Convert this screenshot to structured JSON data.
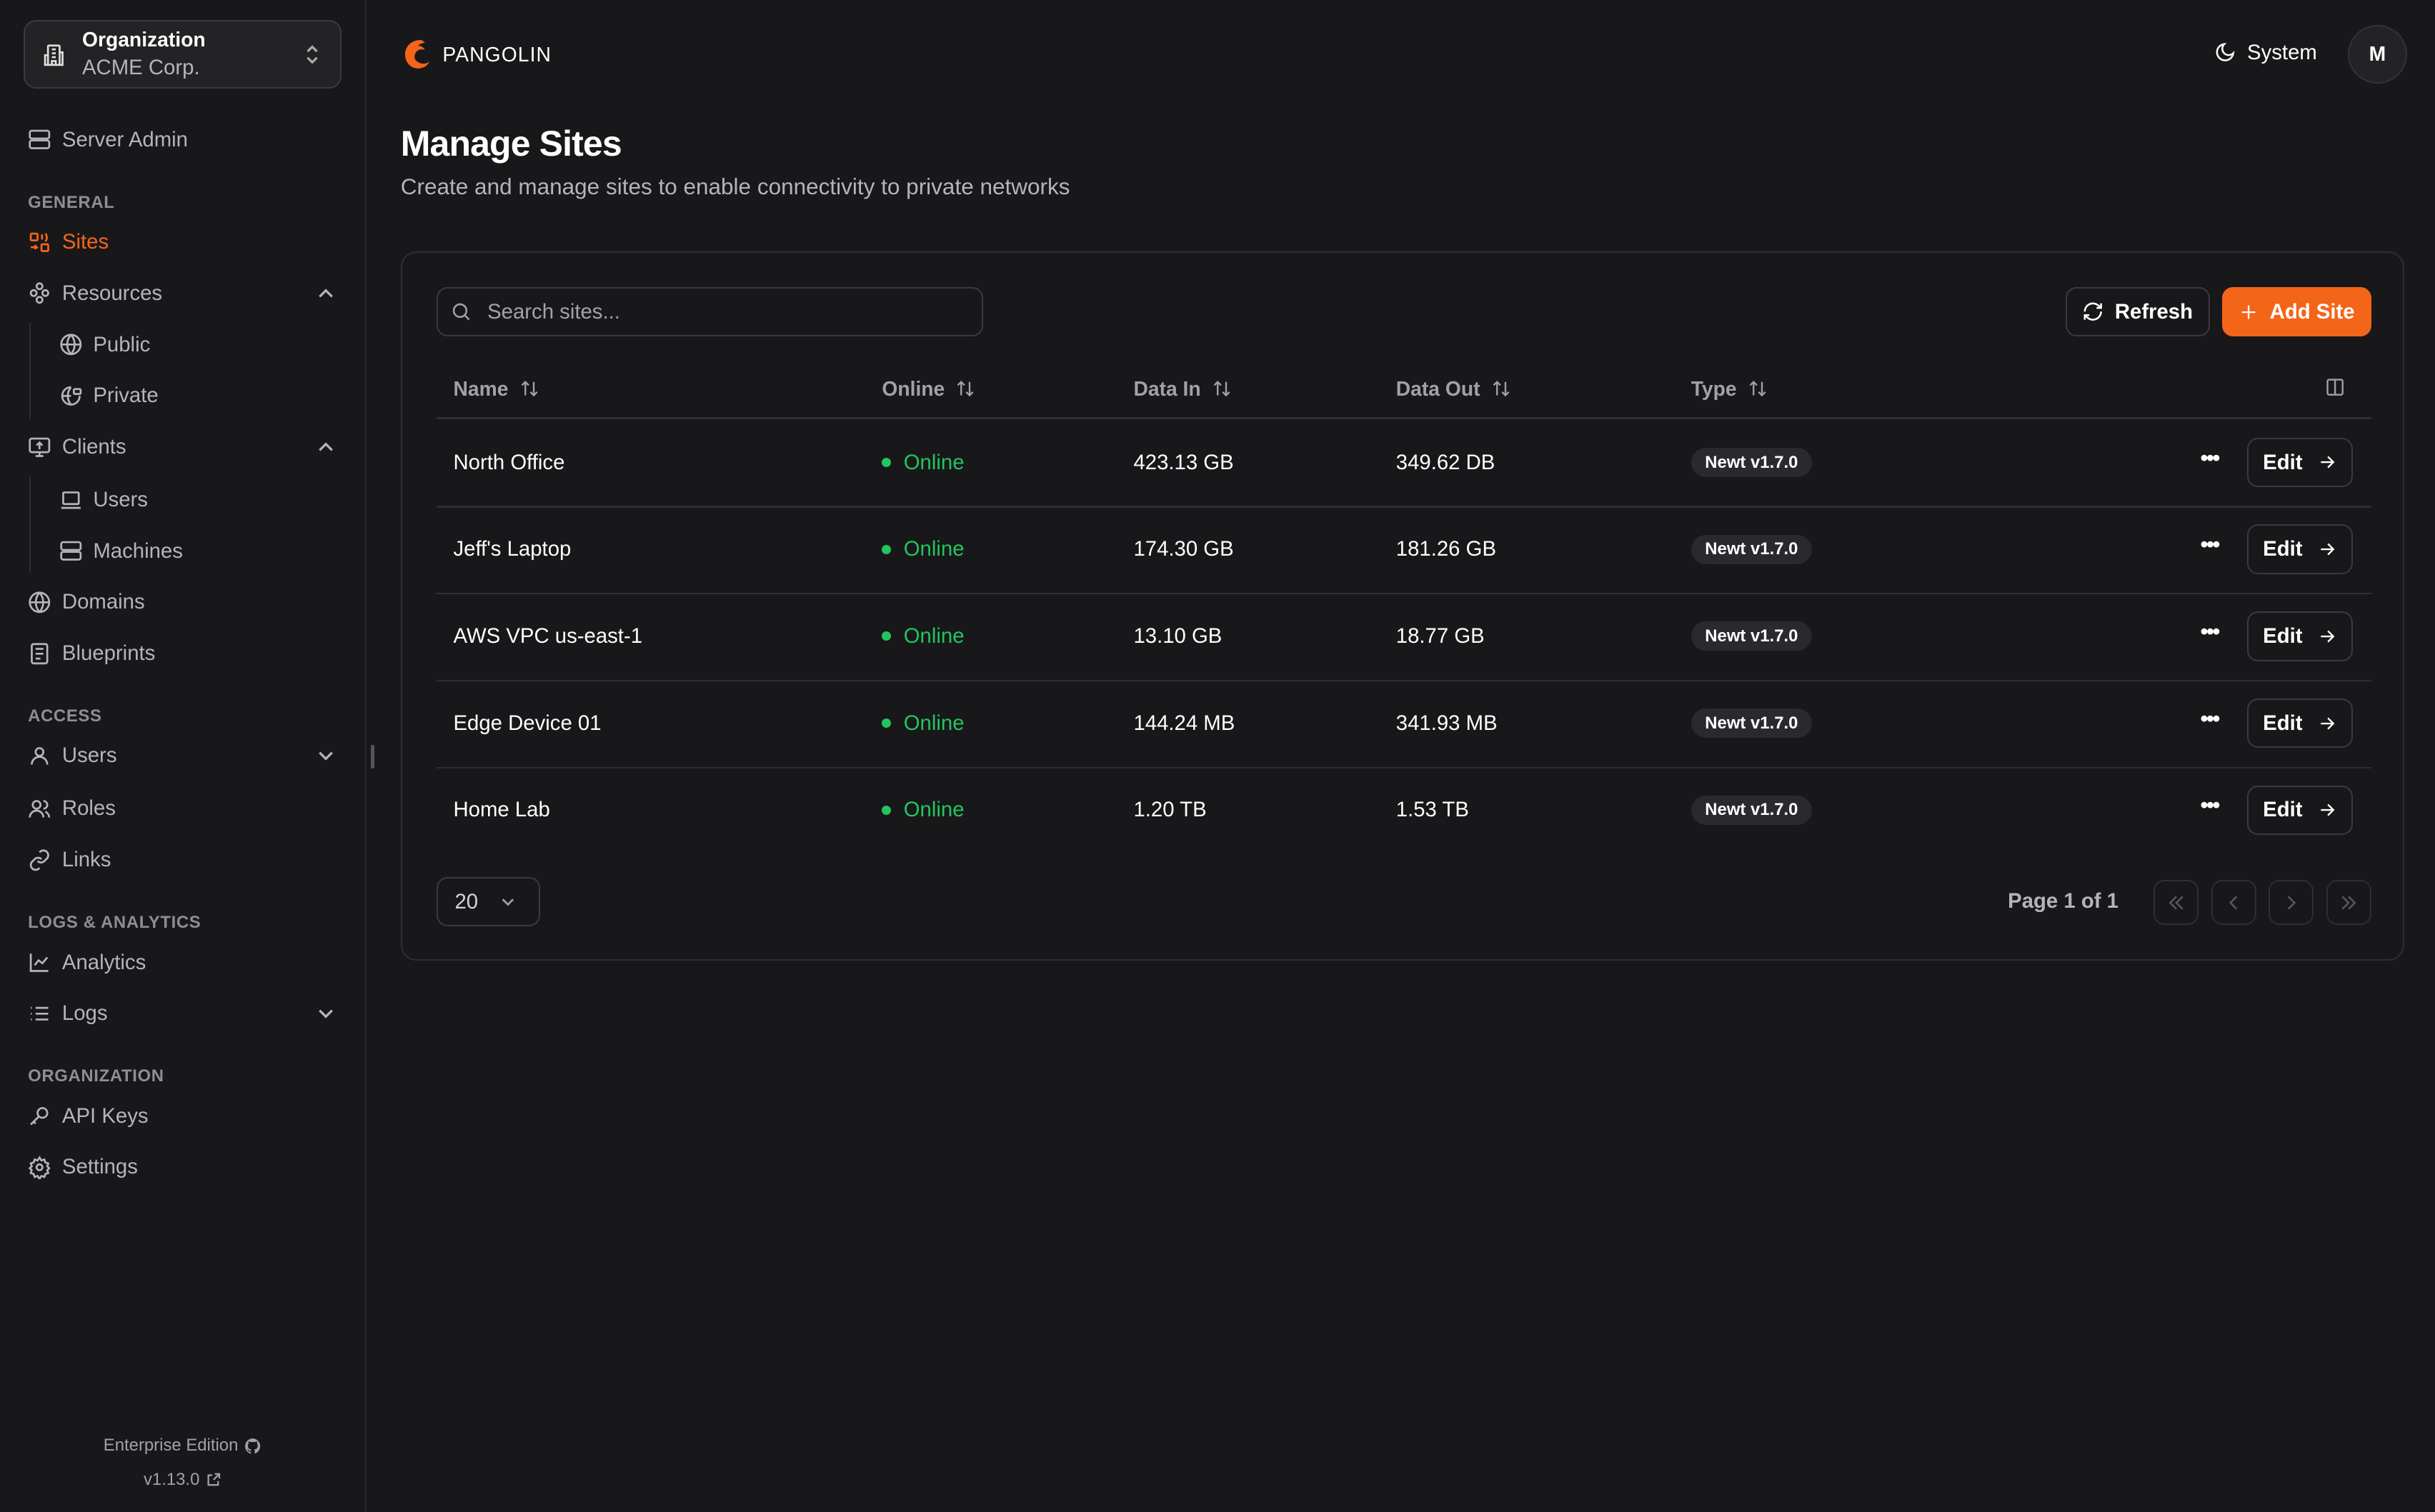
{
  "colors": {
    "accent": "#f36518",
    "online": "#22c55e",
    "background": "#18181b"
  },
  "org": {
    "label": "Organization",
    "name": "ACME Corp."
  },
  "sidebar": {
    "server_admin": "Server Admin",
    "sections": {
      "general": "GENERAL",
      "access": "ACCESS",
      "logs": "LOGS & ANALYTICS",
      "organization": "ORGANIZATION"
    },
    "items": {
      "sites": "Sites",
      "resources": "Resources",
      "public": "Public",
      "private": "Private",
      "clients": "Clients",
      "users_client": "Users",
      "machines": "Machines",
      "domains": "Domains",
      "blueprints": "Blueprints",
      "users": "Users",
      "roles": "Roles",
      "links": "Links",
      "analytics": "Analytics",
      "logs": "Logs",
      "api_keys": "API Keys",
      "settings": "Settings"
    },
    "footer": {
      "edition": "Enterprise Edition",
      "version": "v1.13.0"
    }
  },
  "header": {
    "brand": "PANGOLIN",
    "theme": "System",
    "avatar": "M"
  },
  "page": {
    "title": "Manage Sites",
    "subtitle": "Create and manage sites to enable connectivity to private networks"
  },
  "toolbar": {
    "search_placeholder": "Search sites...",
    "refresh": "Refresh",
    "add": "Add Site"
  },
  "table": {
    "columns": [
      "Name",
      "Online",
      "Data In",
      "Data Out",
      "Type"
    ],
    "rows": [
      {
        "name": "North Office",
        "status": "Online",
        "data_in": "423.13 GB",
        "data_out": "349.62 DB",
        "type": "Newt v1.7.0",
        "action": "Edit"
      },
      {
        "name": "Jeff's Laptop",
        "status": "Online",
        "data_in": "174.30 GB",
        "data_out": "181.26 GB",
        "type": "Newt v1.7.0",
        "action": "Edit"
      },
      {
        "name": "AWS VPC us-east-1",
        "status": "Online",
        "data_in": "13.10 GB",
        "data_out": "18.77 GB",
        "type": "Newt v1.7.0",
        "action": "Edit"
      },
      {
        "name": "Edge Device 01",
        "status": "Online",
        "data_in": "144.24 MB",
        "data_out": "341.93 MB",
        "type": "Newt v1.7.0",
        "action": "Edit"
      },
      {
        "name": "Home Lab",
        "status": "Online",
        "data_in": "1.20 TB",
        "data_out": "1.53 TB",
        "type": "Newt v1.7.0",
        "action": "Edit"
      }
    ]
  },
  "pagination": {
    "page_size": "20",
    "info": "Page 1 of 1"
  }
}
